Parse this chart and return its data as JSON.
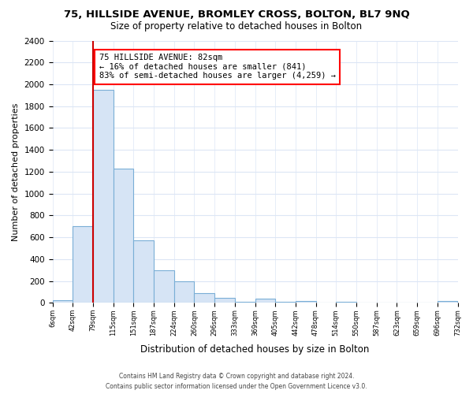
{
  "title": "75, HILLSIDE AVENUE, BROMLEY CROSS, BOLTON, BL7 9NQ",
  "subtitle": "Size of property relative to detached houses in Bolton",
  "xlabel": "Distribution of detached houses by size in Bolton",
  "ylabel": "Number of detached properties",
  "bin_labels": [
    "6sqm",
    "42sqm",
    "79sqm",
    "115sqm",
    "151sqm",
    "187sqm",
    "224sqm",
    "260sqm",
    "296sqm",
    "333sqm",
    "369sqm",
    "405sqm",
    "442sqm",
    "478sqm",
    "514sqm",
    "550sqm",
    "587sqm",
    "623sqm",
    "659sqm",
    "696sqm",
    "732sqm"
  ],
  "bar_values": [
    20,
    700,
    1950,
    1230,
    570,
    300,
    200,
    85,
    45,
    10,
    35,
    10,
    15,
    5,
    10,
    5,
    0,
    0,
    0,
    15
  ],
  "bar_color": "#d6e4f5",
  "bar_edge_color": "#7aaed6",
  "vline_color": "#cc0000",
  "annotation_title": "75 HILLSIDE AVENUE: 82sqm",
  "annotation_line1": "← 16% of detached houses are smaller (841)",
  "annotation_line2": "83% of semi-detached houses are larger (4,259) →",
  "ylim": [
    0,
    2400
  ],
  "yticks": [
    0,
    200,
    400,
    600,
    800,
    1000,
    1200,
    1400,
    1600,
    1800,
    2000,
    2200,
    2400
  ],
  "footer_line1": "Contains HM Land Registry data © Crown copyright and database right 2024.",
  "footer_line2": "Contains public sector information licensed under the Open Government Licence v3.0.",
  "background_color": "#ffffff",
  "grid_color": "#dce6f5"
}
